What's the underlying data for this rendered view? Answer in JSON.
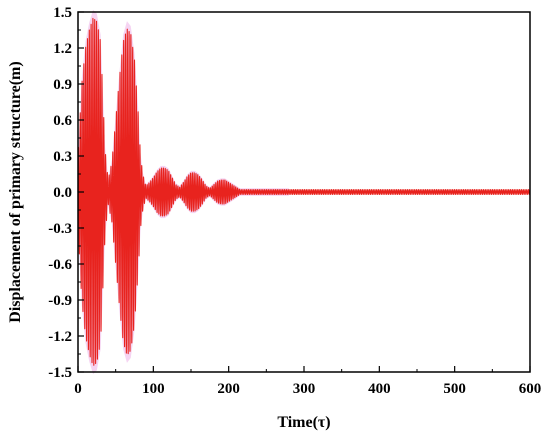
{
  "chart_data": {
    "type": "line",
    "xlabel": "Time(τ)",
    "ylabel": "Displacement of primary structure(m)",
    "xlim": [
      0,
      600
    ],
    "ylim": [
      -1.5,
      1.5
    ],
    "xticks": [
      "0",
      "100",
      "200",
      "300",
      "400",
      "500",
      "600"
    ],
    "yticks": [
      "1.5",
      "1.2",
      "0.9",
      "0.6",
      "0.3",
      "0.0",
      "-0.3",
      "-0.6",
      "-0.9",
      "-1.2",
      "-1.5"
    ],
    "grid": false,
    "legend": "none",
    "series": [
      {
        "color": "#e8231e",
        "shaded_envelope_color": "#f2c6ee",
        "envelope": {
          "t": [
            0,
            5,
            10,
            15,
            20,
            25,
            30,
            33,
            36,
            40,
            45,
            50,
            55,
            60,
            65,
            70,
            75,
            80,
            83,
            86,
            90,
            95,
            100,
            105,
            110,
            115,
            120,
            125,
            130,
            135,
            140,
            145,
            150,
            155,
            160,
            165,
            170,
            175,
            180,
            185,
            190,
            195,
            200,
            205,
            210,
            215,
            220,
            225,
            230,
            240,
            250,
            260,
            300,
            600
          ],
          "amplitude": [
            0.3,
            0.9,
            1.2,
            1.35,
            1.45,
            1.42,
            1.25,
            0.8,
            0.35,
            0.1,
            0.25,
            0.6,
            0.95,
            1.25,
            1.36,
            1.32,
            1.1,
            0.65,
            0.3,
            0.15,
            0.05,
            0.08,
            0.12,
            0.17,
            0.2,
            0.2,
            0.18,
            0.12,
            0.06,
            0.04,
            0.08,
            0.13,
            0.16,
            0.16,
            0.14,
            0.1,
            0.05,
            0.03,
            0.06,
            0.09,
            0.1,
            0.1,
            0.08,
            0.06,
            0.04,
            0.02,
            0.02,
            0.02,
            0.02,
            0.02,
            0.02,
            0.02,
            0.02,
            0.02
          ]
        }
      }
    ]
  }
}
